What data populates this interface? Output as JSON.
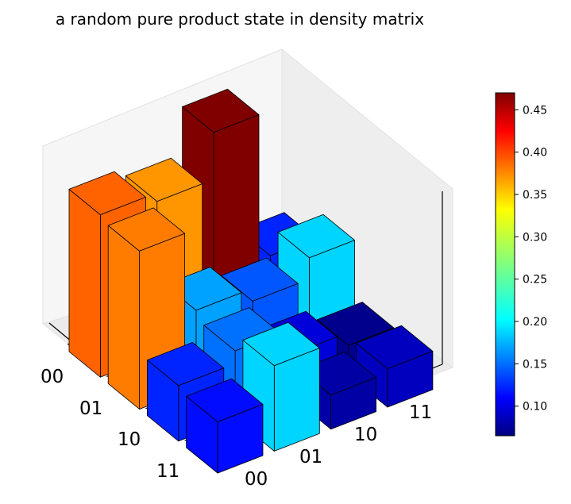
{
  "chart_data": {
    "type": "bar3d",
    "title": "a random pure product state in density matrix",
    "row_labels": [
      "00",
      "01",
      "10",
      "11"
    ],
    "col_labels": [
      "00",
      "01",
      "10",
      "11"
    ],
    "values": [
      [
        0.38,
        0.36,
        0.47,
        0.13
      ],
      [
        0.37,
        0.18,
        0.15,
        0.2
      ],
      [
        0.13,
        0.16,
        0.1,
        0.07
      ],
      [
        0.12,
        0.2,
        0.08,
        0.09
      ]
    ],
    "zlim": [
      0,
      0.48
    ],
    "colormap": "jet",
    "colorbar": {
      "min": 0.065,
      "max": 0.47,
      "ticks": [
        0.1,
        0.15,
        0.2,
        0.25,
        0.3,
        0.35,
        0.4,
        0.45
      ],
      "tick_labels": [
        "0.10",
        "0.15",
        "0.20",
        "0.25",
        "0.30",
        "0.35",
        "0.40",
        "0.45"
      ]
    }
  }
}
